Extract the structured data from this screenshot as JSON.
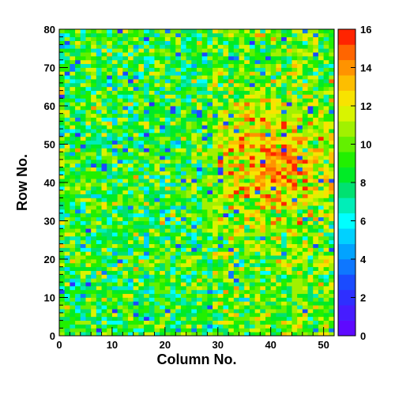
{
  "chart_data": {
    "type": "heatmap",
    "xlabel": "Column No.",
    "ylabel": "Row No.",
    "xlim": [
      0,
      52
    ],
    "ylim": [
      0,
      80
    ],
    "x_ticks": [
      0,
      10,
      20,
      30,
      40,
      50
    ],
    "y_ticks": [
      0,
      10,
      20,
      30,
      40,
      50,
      60,
      70,
      80
    ],
    "n_columns": 52,
    "n_rows": 80,
    "value_range": [
      0,
      16
    ],
    "colorbar_ticks": [
      0,
      2,
      4,
      6,
      8,
      10,
      12,
      14,
      16
    ],
    "colorbar_levels": 20,
    "colormap": [
      {
        "value": 0,
        "color": "#6a00ff"
      },
      {
        "value": 2.5,
        "color": "#1f3bff"
      },
      {
        "value": 4.5,
        "color": "#00a8ff"
      },
      {
        "value": 6,
        "color": "#00ffff"
      },
      {
        "value": 7.5,
        "color": "#00e07a"
      },
      {
        "value": 8.8,
        "color": "#00f000"
      },
      {
        "value": 10.5,
        "color": "#8cf000"
      },
      {
        "value": 12,
        "color": "#f5f500"
      },
      {
        "value": 13.5,
        "color": "#ffb000"
      },
      {
        "value": 15,
        "color": "#ff5a00"
      },
      {
        "value": 16,
        "color": "#ff0000"
      }
    ],
    "description_of_values": "Per-cell counts; typical 8-10 on left half, rising to 11-15 in a band around columns 30-50 and rows 30-55."
  }
}
